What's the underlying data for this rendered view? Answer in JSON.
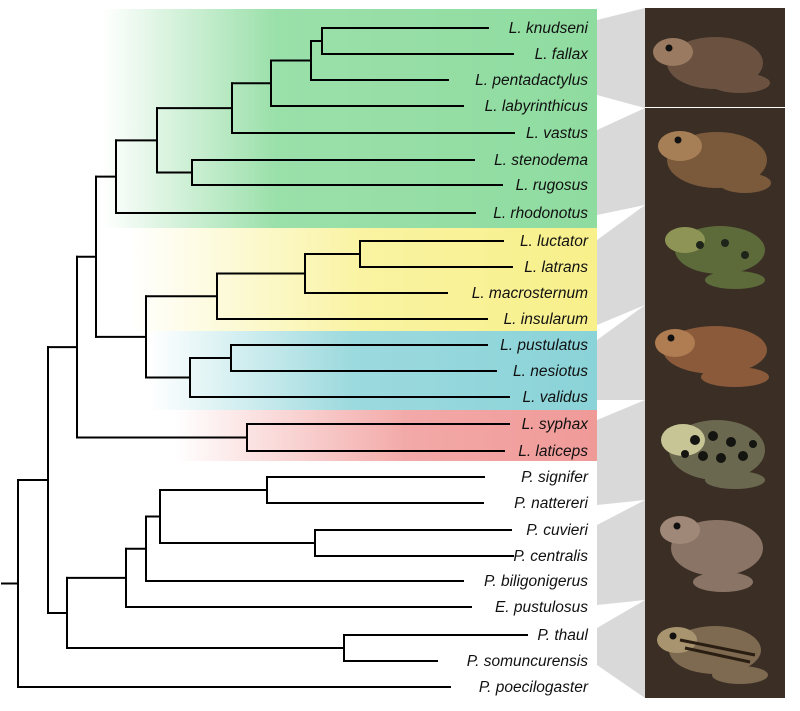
{
  "figure": {
    "clades": [
      {
        "name": "green-clade",
        "color": "#8fdca0"
      },
      {
        "name": "yellow-clade",
        "color": "#f8f08a"
      },
      {
        "name": "blue-clade",
        "color": "#8ad3d8"
      },
      {
        "name": "red-clade",
        "color": "#f09a98"
      }
    ],
    "taxa": [
      "L. knudseni",
      "L. fallax",
      "L. pentadactylus",
      "L. labyrinthicus",
      "L. vastus",
      "L. stenodema",
      "L. rugosus",
      "L. rhodonotus",
      "L. luctator",
      "L. latrans",
      "L. macrosternum",
      "L. insularum",
      "L. pustulatus",
      "L. nesiotus",
      "L. validus",
      "L. syphax",
      "L. laticeps",
      "P. signifer",
      "P. nattereri",
      "P. cuvieri",
      "P. centralis",
      "P. biligonigerus",
      "E. pustulosus",
      "P. thaul",
      "P. somuncurensis",
      "P. poecilogaster"
    ],
    "photos": [
      {
        "name": "photo-brown-frog",
        "colors": [
          "#6b5240",
          "#3d2c22",
          "#9a7a60"
        ]
      },
      {
        "name": "photo-large-toad-frog",
        "colors": [
          "#7b5a3c",
          "#4e3a26",
          "#a67f57"
        ]
      },
      {
        "name": "photo-spotted-green-frog",
        "colors": [
          "#5d6a3a",
          "#2c2a20",
          "#8d9455"
        ]
      },
      {
        "name": "photo-brown-smooth-frog",
        "colors": [
          "#8a5a3a",
          "#5a3822",
          "#b07c52"
        ]
      },
      {
        "name": "photo-spotted-yellow-toad",
        "colors": [
          "#6b6850",
          "#1a1a14",
          "#c7c496"
        ]
      },
      {
        "name": "photo-grey-toad",
        "colors": [
          "#8a7466",
          "#5b4638",
          "#a08878"
        ]
      },
      {
        "name": "photo-striped-frog",
        "colors": [
          "#7d6a50",
          "#3b2d1e",
          "#a8946e"
        ]
      }
    ]
  }
}
